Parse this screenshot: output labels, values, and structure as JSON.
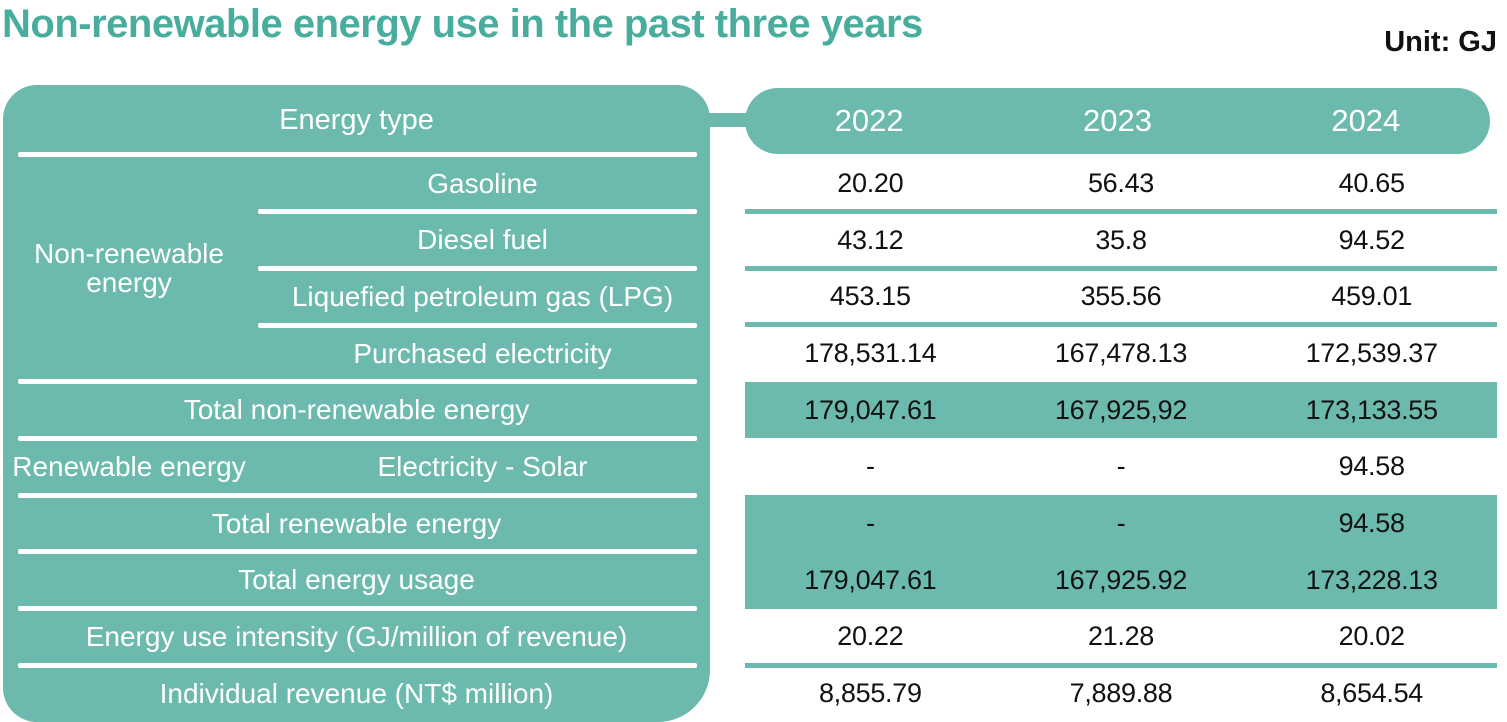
{
  "page": {
    "title": "Non-renewable energy use in the past three years",
    "unit_label": "Unit: GJ"
  },
  "colors": {
    "teal_fill": "#6cbaad",
    "title_text": "#49ad9e",
    "value_text": "#111111",
    "panel_text": "#ffffff"
  },
  "chart_data": {
    "type": "table",
    "title": "Non-renewable energy use in the past three years",
    "unit": "GJ",
    "columns": [
      "Energy type",
      "2022",
      "2023",
      "2024"
    ],
    "rows": [
      {
        "group": "Non-renewable energy",
        "label": "Gasoline",
        "values": [
          "20.20",
          "56.43",
          "40.65"
        ],
        "highlight": false
      },
      {
        "group": "Non-renewable energy",
        "label": "Diesel fuel",
        "values": [
          "43.12",
          "35.8",
          "94.52"
        ],
        "highlight": false
      },
      {
        "group": "Non-renewable energy",
        "label": "Liquefied petroleum gas (LPG)",
        "values": [
          "453.15",
          "355.56",
          "459.01"
        ],
        "highlight": false
      },
      {
        "group": "Non-renewable energy",
        "label": "Purchased electricity",
        "values": [
          "178,531.14",
          "167,478.13",
          "172,539.37"
        ],
        "highlight": false
      },
      {
        "group": "",
        "label": "Total non-renewable energy",
        "values": [
          "179,047.61",
          "167,925,92",
          "173,133.55"
        ],
        "highlight": true
      },
      {
        "group": "Renewable energy",
        "label": "Electricity - Solar",
        "values": [
          "-",
          "-",
          "94.58"
        ],
        "highlight": false
      },
      {
        "group": "",
        "label": "Total renewable energy",
        "values": [
          "-",
          "-",
          "94.58"
        ],
        "highlight": true
      },
      {
        "group": "",
        "label": "Total energy usage",
        "values": [
          "179,047.61",
          "167,925.92",
          "173,228.13"
        ],
        "highlight": true
      },
      {
        "group": "",
        "label": "Energy use intensity (GJ/million of revenue)",
        "values": [
          "20.22",
          "21.28",
          "20.02"
        ],
        "highlight": false
      },
      {
        "group": "",
        "label": "Individual revenue (NT$ million)",
        "values": [
          "8,855.79",
          "7,889.88",
          "8,654.54"
        ],
        "highlight": false
      }
    ]
  }
}
